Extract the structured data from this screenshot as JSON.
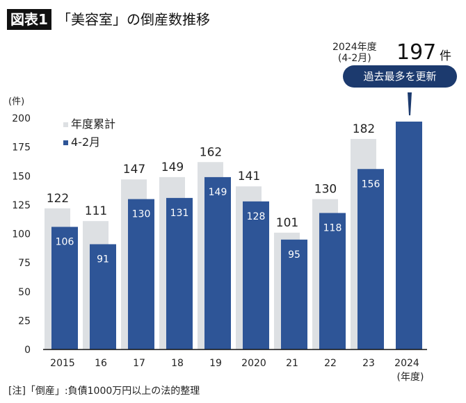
{
  "header": {
    "tag": "図表1",
    "title": "「美容室」の倒産数推移"
  },
  "callout": {
    "label_line1": "2024年度",
    "label_line2": "(4-2月)",
    "value": "197",
    "unit": "件",
    "badge": "過去最多を更新"
  },
  "note": "[注]「倒産」:負債1000万円以上の法的整理",
  "chart_data": {
    "type": "bar",
    "ylabel": "(件)",
    "xlabel": "(年度)",
    "ylim": [
      0,
      200
    ],
    "yticks": [
      0,
      25,
      50,
      75,
      100,
      125,
      150,
      175,
      200
    ],
    "grid": false,
    "legend_placement": "top-left",
    "categories": [
      "2015",
      "16",
      "17",
      "18",
      "19",
      "2020",
      "21",
      "22",
      "23",
      "2024"
    ],
    "series": [
      {
        "name": "年度累計",
        "color": "#dde0e3",
        "values": [
          122,
          111,
          147,
          149,
          162,
          141,
          101,
          130,
          182,
          null
        ]
      },
      {
        "name": "4-2月",
        "color": "#2e5597",
        "values": [
          106,
          91,
          130,
          131,
          149,
          128,
          95,
          118,
          156,
          197
        ]
      }
    ]
  },
  "colors": {
    "accent": "#1c3a6e"
  }
}
